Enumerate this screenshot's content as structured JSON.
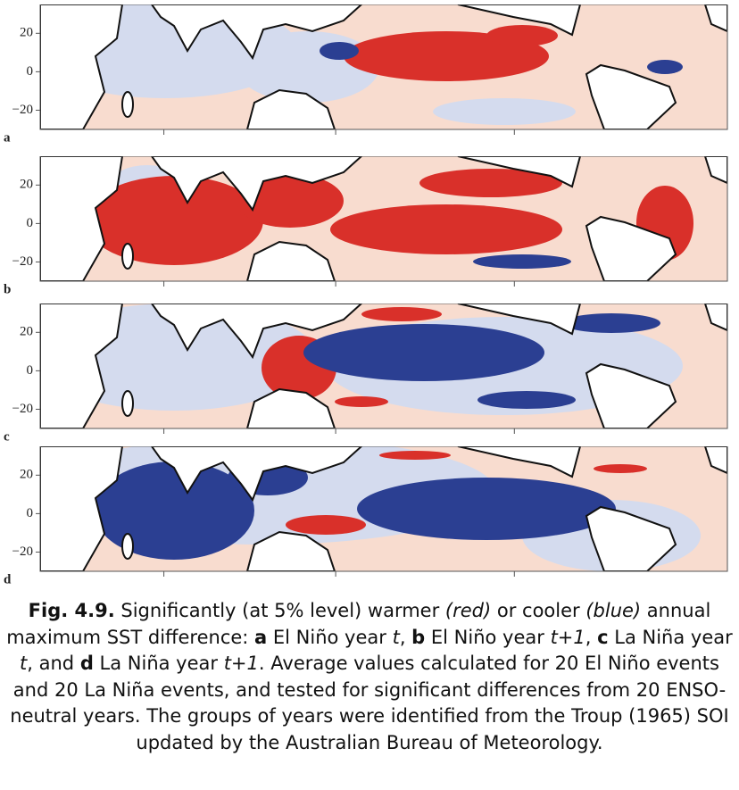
{
  "panels": [
    {
      "label": "a",
      "ylim": [
        -30,
        35
      ],
      "yticks": [
        {
          "value": 20,
          "label": "20"
        },
        {
          "value": 0,
          "label": "0"
        },
        {
          "value": -20,
          "label": "−20"
        }
      ]
    },
    {
      "label": "b",
      "ylim": [
        -30,
        35
      ],
      "yticks": [
        {
          "value": 20,
          "label": "20"
        },
        {
          "value": 0,
          "label": "0"
        },
        {
          "value": -20,
          "label": "−20"
        }
      ]
    },
    {
      "label": "c",
      "ylim": [
        -30,
        35
      ],
      "yticks": [
        {
          "value": 20,
          "label": "20"
        },
        {
          "value": 0,
          "label": "0"
        },
        {
          "value": -20,
          "label": "−20"
        }
      ]
    },
    {
      "label": "d",
      "ylim": [
        -30,
        35
      ],
      "yticks": [
        {
          "value": 20,
          "label": "20"
        },
        {
          "value": 0,
          "label": "0"
        },
        {
          "value": -20,
          "label": "−20"
        }
      ]
    }
  ],
  "caption": [
    "Fig. 4.9.",
    " Significantly (at 5% level) warmer ",
    "(red)",
    " or cooler ",
    "(blue)",
    " annual maximum SST difference: ",
    "a",
    " El Niño year ",
    "t",
    ", ",
    "b",
    " El Niño year ",
    "t+1",
    ", ",
    "c",
    " La Niña year ",
    "t",
    ", and ",
    "d",
    " La Niña year ",
    "t+1",
    ". Average values calculated for 20 El Niño events and 20 La Niña events, and tested for significant differences from 20 ENSO-neutral years. The groups of years were identified from the Troup (1965) SOI updated by the Australian Bureau of Meteorology."
  ]
}
